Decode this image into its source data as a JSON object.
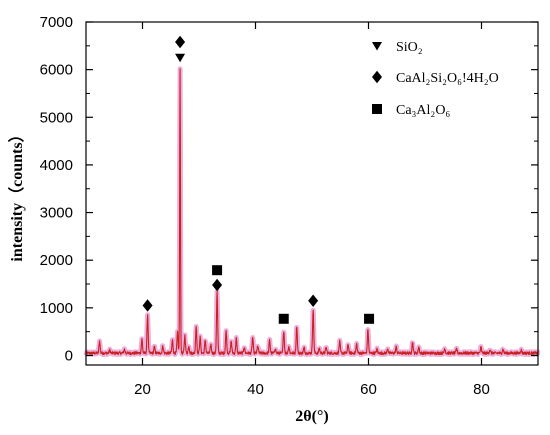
{
  "chart_data": {
    "type": "line",
    "xlabel": "2θ(°)",
    "ylabel": "intensity（counts）",
    "xlim": [
      10,
      90
    ],
    "ylim": [
      -200,
      7000
    ],
    "xticks": [
      20,
      40,
      60,
      80
    ],
    "yticks": [
      0,
      1000,
      2000,
      3000,
      4000,
      5000,
      6000,
      7000
    ],
    "xtick_labels": [
      "20",
      "40",
      "60",
      "80"
    ],
    "ytick_labels": [
      "0",
      "1000",
      "2000",
      "3000",
      "4000",
      "5000",
      "6000",
      "7000"
    ],
    "grid": false,
    "legend_position": "top-right",
    "colors": {
      "line": "#cc1f1f",
      "shadow": "#e9a2d6",
      "markers": "#000000"
    },
    "baseline": 50,
    "peaks": [
      {
        "x": 12.4,
        "y": 300
      },
      {
        "x": 14.2,
        "y": 110
      },
      {
        "x": 16.8,
        "y": 130
      },
      {
        "x": 19.9,
        "y": 340
      },
      {
        "x": 20.9,
        "y": 860
      },
      {
        "x": 22.1,
        "y": 180
      },
      {
        "x": 23.6,
        "y": 200
      },
      {
        "x": 25.3,
        "y": 320
      },
      {
        "x": 26.2,
        "y": 480
      },
      {
        "x": 26.65,
        "y": 6020
      },
      {
        "x": 27.5,
        "y": 420
      },
      {
        "x": 28.2,
        "y": 200
      },
      {
        "x": 29.5,
        "y": 620
      },
      {
        "x": 30.2,
        "y": 380
      },
      {
        "x": 31.1,
        "y": 320
      },
      {
        "x": 32.1,
        "y": 230
      },
      {
        "x": 33.2,
        "y": 1330
      },
      {
        "x": 34.8,
        "y": 520
      },
      {
        "x": 35.7,
        "y": 300
      },
      {
        "x": 36.6,
        "y": 360
      },
      {
        "x": 38.0,
        "y": 180
      },
      {
        "x": 39.5,
        "y": 380
      },
      {
        "x": 40.4,
        "y": 200
      },
      {
        "x": 42.5,
        "y": 320
      },
      {
        "x": 43.5,
        "y": 150
      },
      {
        "x": 45.0,
        "y": 520
      },
      {
        "x": 45.9,
        "y": 190
      },
      {
        "x": 47.3,
        "y": 620
      },
      {
        "x": 48.6,
        "y": 160
      },
      {
        "x": 50.2,
        "y": 960
      },
      {
        "x": 51.3,
        "y": 150
      },
      {
        "x": 52.5,
        "y": 170
      },
      {
        "x": 54.9,
        "y": 290
      },
      {
        "x": 56.4,
        "y": 230
      },
      {
        "x": 57.9,
        "y": 240
      },
      {
        "x": 59.9,
        "y": 540
      },
      {
        "x": 61.5,
        "y": 130
      },
      {
        "x": 63.4,
        "y": 140
      },
      {
        "x": 64.9,
        "y": 180
      },
      {
        "x": 67.8,
        "y": 280
      },
      {
        "x": 68.9,
        "y": 180
      },
      {
        "x": 73.5,
        "y": 150
      },
      {
        "x": 75.6,
        "y": 140
      },
      {
        "x": 79.9,
        "y": 170
      },
      {
        "x": 81.5,
        "y": 120
      },
      {
        "x": 83.8,
        "y": 130
      },
      {
        "x": 87.0,
        "y": 120
      }
    ],
    "markers": [
      {
        "phase": "SiO2",
        "symbol": "triangle-down",
        "x": 26.65,
        "y": 6250
      },
      {
        "phase": "CaAl2Si2O6·4H2O",
        "symbol": "diamond",
        "x": 26.65,
        "y": 6580
      },
      {
        "phase": "CaAl2Si2O6·4H2O",
        "symbol": "diamond",
        "x": 20.9,
        "y": 1050
      },
      {
        "phase": "CaAl2Si2O6·4H2O",
        "symbol": "diamond",
        "x": 33.2,
        "y": 1480
      },
      {
        "phase": "CaAl2Si2O6·4H2O",
        "symbol": "diamond",
        "x": 50.2,
        "y": 1150
      },
      {
        "phase": "Ca3Al2O6",
        "symbol": "square",
        "x": 33.2,
        "y": 1790
      },
      {
        "phase": "Ca3Al2O6",
        "symbol": "square",
        "x": 45.0,
        "y": 770
      },
      {
        "phase": "Ca3Al2O6",
        "symbol": "square",
        "x": 60.1,
        "y": 770
      }
    ],
    "legend": [
      {
        "symbol": "triangle-down",
        "label": "SiO₂"
      },
      {
        "symbol": "diamond",
        "label": "CaAl₂Si₂O₆!4H₂O"
      },
      {
        "symbol": "square",
        "label": "Ca₃Al₂O₆"
      }
    ]
  }
}
